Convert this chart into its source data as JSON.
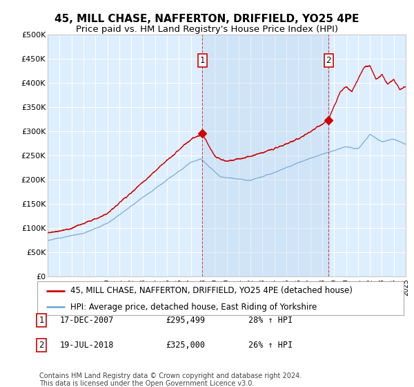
{
  "title": "45, MILL CHASE, NAFFERTON, DRIFFIELD, YO25 4PE",
  "subtitle": "Price paid vs. HM Land Registry's House Price Index (HPI)",
  "ylim": [
    0,
    500000
  ],
  "yticks": [
    0,
    50000,
    100000,
    150000,
    200000,
    250000,
    300000,
    350000,
    400000,
    450000,
    500000
  ],
  "ytick_labels": [
    "£0",
    "£50K",
    "£100K",
    "£150K",
    "£200K",
    "£250K",
    "£300K",
    "£350K",
    "£400K",
    "£450K",
    "£500K"
  ],
  "background_color": "#ffffff",
  "plot_bg_color": "#ddeeff",
  "grid_color": "#ffffff",
  "red_line_color": "#cc0000",
  "blue_line_color": "#7aadd4",
  "shade_color": "#c8dff0",
  "marker1_date": 2007.96,
  "marker1_label": "1",
  "marker1_price": 295499,
  "marker2_date": 2018.54,
  "marker2_label": "2",
  "marker2_price": 325000,
  "legend_line1": "45, MILL CHASE, NAFFERTON, DRIFFIELD, YO25 4PE (detached house)",
  "legend_line2": "HPI: Average price, detached house, East Riding of Yorkshire",
  "footer": "Contains HM Land Registry data © Crown copyright and database right 2024.\nThis data is licensed under the Open Government Licence v3.0.",
  "xmin": 1995,
  "xmax": 2025,
  "title_fontsize": 11,
  "subtitle_fontsize": 9.5,
  "tick_fontsize": 8,
  "legend_fontsize": 8.5,
  "footer_fontsize": 7
}
